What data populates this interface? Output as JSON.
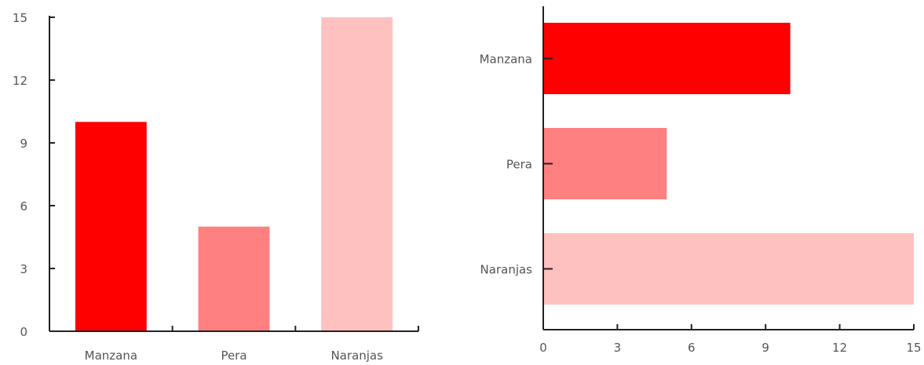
{
  "chart_data": [
    {
      "type": "bar",
      "orientation": "vertical",
      "categories": [
        "Manzana",
        "Pera",
        "Naranjas"
      ],
      "values": [
        10,
        5,
        15
      ],
      "colors": [
        "#ff0000",
        "#ff8080",
        "#ffc0c0"
      ],
      "yticks": [
        0,
        3,
        6,
        9,
        12,
        15
      ],
      "ylim": [
        0,
        15
      ],
      "grid": false,
      "legend": "none"
    },
    {
      "type": "bar",
      "orientation": "horizontal",
      "categories": [
        "Manzana",
        "Pera",
        "Naranjas"
      ],
      "values": [
        10,
        5,
        15
      ],
      "colors": [
        "#ff0000",
        "#ff8080",
        "#ffc0c0"
      ],
      "xticks": [
        0,
        3,
        6,
        9,
        12,
        15
      ],
      "xlim": [
        0,
        15
      ],
      "grid": false,
      "legend": "none"
    }
  ]
}
